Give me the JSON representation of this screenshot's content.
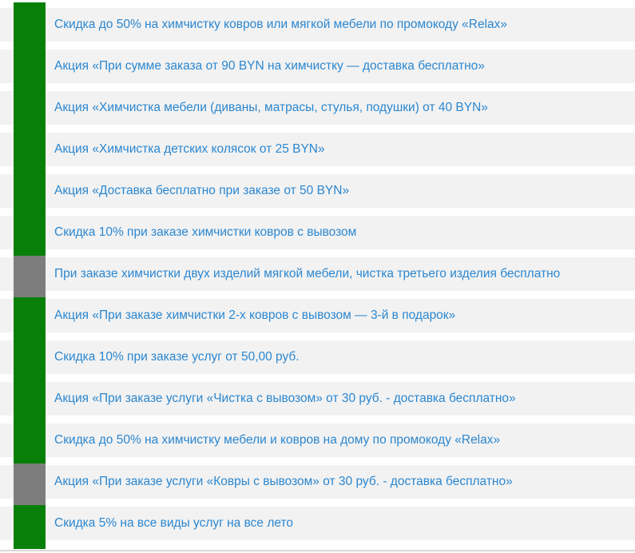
{
  "colors": {
    "marker_green": "#087f08",
    "marker_gray": "#7d7d7d",
    "row_background": "#f2f2f2",
    "link_text": "#2b87d0",
    "divider": "#d9d9d9"
  },
  "promotions": [
    {
      "label": "Скидка до 50% на химчистку ковров или мягкой мебели по промокоду «Relax»",
      "marker": "green"
    },
    {
      "label": "Акция «При сумме заказа от 90 BYN на химчистку — доставка бесплатно»",
      "marker": "green"
    },
    {
      "label": "Акция «Химчистка мебели (диваны, матрасы, стулья, подушки) от 40 BYN»",
      "marker": "green"
    },
    {
      "label": "Акция «Химчистка детских колясок от 25 BYN»",
      "marker": "green"
    },
    {
      "label": "Акция «Доставка бесплатно при заказе от 50 BYN»",
      "marker": "green"
    },
    {
      "label": "Скидка 10% при заказе химчистки ковров с вывозом",
      "marker": "green"
    },
    {
      "label": "При заказе химчистки двух изделий мягкой мебели, чистка третьего изделия бесплатно",
      "marker": "gray"
    },
    {
      "label": "Акция «При заказе химчистки 2-х ковров с вывозом — 3-й в подарок»",
      "marker": "green"
    },
    {
      "label": "Скидка 10% при заказе услуг от 50,00 руб.",
      "marker": "green"
    },
    {
      "label": "Акция «При заказе услуги «Чистка с вывозом» от 30 руб. - доставка бесплатно»",
      "marker": "green"
    },
    {
      "label": "Скидка до 50% на химчистку мебели и ковров на дому по промокоду «Relax»",
      "marker": "green"
    },
    {
      "label": "Акция «При заказе услуги «Ковры с вывозом» от 30 руб. - доставка бесплатно»",
      "marker": "gray"
    },
    {
      "label": "Скидка 5% на все виды услуг на все лето",
      "marker": "green"
    }
  ]
}
